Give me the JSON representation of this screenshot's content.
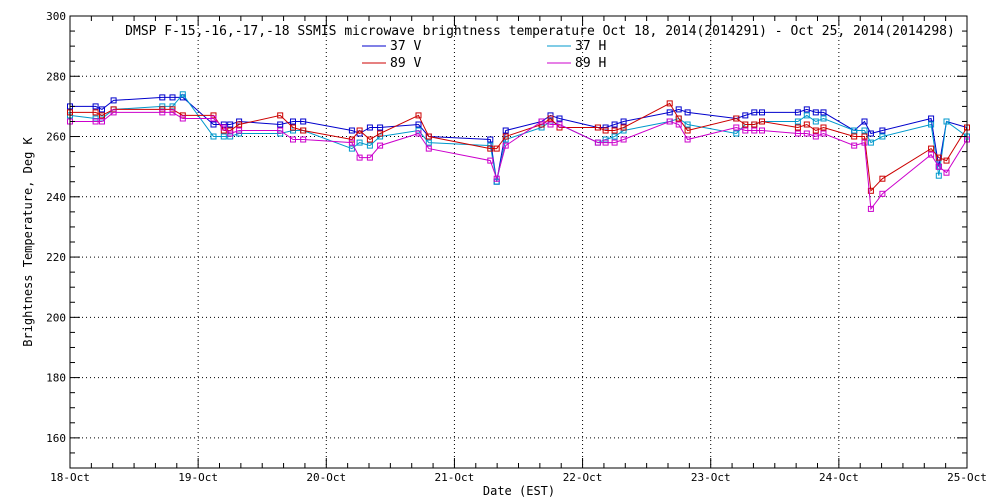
{
  "chart_data": {
    "type": "line",
    "title": "DMSP F-15,-16,-17,-18 SSMIS microwave brightness temperature Oct 18, 2014(2014291) - Oct 25, 2014(2014298)",
    "xlabel": "Date (EST)",
    "ylabel": "Brightness Temperature, Deg K",
    "xlim": [
      0,
      7
    ],
    "ylim": [
      150,
      300
    ],
    "x_ticks": [
      {
        "value": 0,
        "label": "18-Oct"
      },
      {
        "value": 1,
        "label": "19-Oct"
      },
      {
        "value": 2,
        "label": "20-Oct"
      },
      {
        "value": 3,
        "label": "21-Oct"
      },
      {
        "value": 4,
        "label": "22-Oct"
      },
      {
        "value": 5,
        "label": "23-Oct"
      },
      {
        "value": 6,
        "label": "24-Oct"
      },
      {
        "value": 7,
        "label": "25-Oct"
      }
    ],
    "y_ticks": [
      {
        "value": 160,
        "label": "160"
      },
      {
        "value": 180,
        "label": "180"
      },
      {
        "value": 200,
        "label": "200"
      },
      {
        "value": 220,
        "label": "220"
      },
      {
        "value": 240,
        "label": "240"
      },
      {
        "value": 260,
        "label": "260"
      },
      {
        "value": 280,
        "label": "280"
      },
      {
        "value": 300,
        "label": "300"
      }
    ],
    "grid": true,
    "legend_position": "top-center",
    "series": [
      {
        "name": "37 V",
        "color": "#0000cc",
        "x": [
          0.0,
          0.2,
          0.25,
          0.34,
          0.72,
          0.8,
          0.88,
          1.12,
          1.2,
          1.25,
          1.32,
          1.64,
          1.74,
          1.82,
          2.2,
          2.26,
          2.34,
          2.42,
          2.72,
          2.8,
          3.28,
          3.33,
          3.4,
          3.68,
          3.75,
          3.82,
          4.12,
          4.18,
          4.25,
          4.32,
          4.68,
          4.75,
          4.82,
          5.2,
          5.27,
          5.34,
          5.4,
          5.68,
          5.75,
          5.82,
          5.88,
          6.12,
          6.2,
          6.25,
          6.34,
          6.72,
          6.78,
          6.84,
          7.0
        ],
        "y": [
          270,
          270,
          269,
          272,
          273,
          273,
          273,
          264,
          264,
          264,
          265,
          264,
          265,
          265,
          262,
          261,
          263,
          263,
          264,
          260,
          259,
          245,
          262,
          265,
          267,
          266,
          263,
          263,
          264,
          265,
          268,
          269,
          268,
          266,
          267,
          268,
          268,
          268,
          269,
          268,
          268,
          262,
          265,
          261,
          262,
          266,
          250,
          265,
          263
        ]
      },
      {
        "name": "37 H",
        "color": "#0099cc",
        "x": [
          0.0,
          0.2,
          0.25,
          0.34,
          0.72,
          0.8,
          0.88,
          1.12,
          1.2,
          1.25,
          1.32,
          1.64,
          1.74,
          1.82,
          2.2,
          2.26,
          2.34,
          2.42,
          2.72,
          2.8,
          3.28,
          3.33,
          3.4,
          3.68,
          3.75,
          3.82,
          4.12,
          4.18,
          4.25,
          4.32,
          4.68,
          4.75,
          4.82,
          5.2,
          5.27,
          5.34,
          5.4,
          5.68,
          5.75,
          5.82,
          5.88,
          6.12,
          6.2,
          6.25,
          6.34,
          6.72,
          6.78,
          6.84,
          7.0
        ],
        "y": [
          267,
          266,
          266,
          269,
          270,
          270,
          274,
          260,
          260,
          260,
          261,
          261,
          262,
          262,
          256,
          258,
          257,
          260,
          262,
          258,
          257,
          245,
          259,
          263,
          265,
          264,
          258,
          259,
          260,
          262,
          265,
          266,
          264,
          261,
          264,
          264,
          265,
          265,
          267,
          265,
          266,
          262,
          262,
          258,
          260,
          264,
          247,
          265,
          260
        ]
      },
      {
        "name": "89 V",
        "color": "#cc0000",
        "x": [
          0.0,
          0.2,
          0.25,
          0.34,
          0.72,
          0.8,
          0.88,
          1.12,
          1.2,
          1.25,
          1.32,
          1.64,
          1.74,
          1.82,
          2.2,
          2.26,
          2.34,
          2.42,
          2.72,
          2.8,
          3.28,
          3.33,
          3.4,
          3.68,
          3.75,
          3.82,
          4.12,
          4.18,
          4.25,
          4.32,
          4.68,
          4.75,
          4.82,
          5.2,
          5.27,
          5.34,
          5.4,
          5.68,
          5.75,
          5.82,
          5.88,
          6.12,
          6.2,
          6.25,
          6.34,
          6.72,
          6.78,
          6.84,
          7.0
        ],
        "y": [
          268,
          268,
          267,
          269,
          269,
          269,
          267,
          267,
          262,
          262,
          264,
          267,
          263,
          262,
          259,
          262,
          259,
          261,
          267,
          260,
          256,
          256,
          260,
          264,
          266,
          263,
          263,
          262,
          262,
          263,
          271,
          266,
          262,
          266,
          264,
          264,
          265,
          263,
          264,
          262,
          263,
          260,
          260,
          242,
          246,
          256,
          253,
          252,
          263
        ]
      },
      {
        "name": "89 H",
        "color": "#cc00cc",
        "x": [
          0.0,
          0.2,
          0.25,
          0.34,
          0.72,
          0.8,
          0.88,
          1.12,
          1.2,
          1.25,
          1.32,
          1.64,
          1.74,
          1.82,
          2.2,
          2.26,
          2.34,
          2.42,
          2.72,
          2.8,
          3.28,
          3.33,
          3.4,
          3.68,
          3.75,
          3.82,
          4.12,
          4.18,
          4.25,
          4.32,
          4.68,
          4.75,
          4.82,
          5.2,
          5.27,
          5.34,
          5.4,
          5.68,
          5.75,
          5.82,
          5.88,
          6.12,
          6.2,
          6.25,
          6.34,
          6.72,
          6.78,
          6.84,
          7.0
        ],
        "y": [
          265,
          265,
          265,
          268,
          268,
          268,
          266,
          266,
          263,
          261,
          262,
          262,
          259,
          259,
          258,
          253,
          253,
          257,
          261,
          256,
          252,
          246,
          257,
          265,
          264,
          264,
          258,
          258,
          258,
          259,
          265,
          264,
          259,
          263,
          262,
          262,
          262,
          261,
          261,
          260,
          261,
          257,
          258,
          236,
          241,
          254,
          250,
          248,
          259
        ]
      }
    ]
  }
}
